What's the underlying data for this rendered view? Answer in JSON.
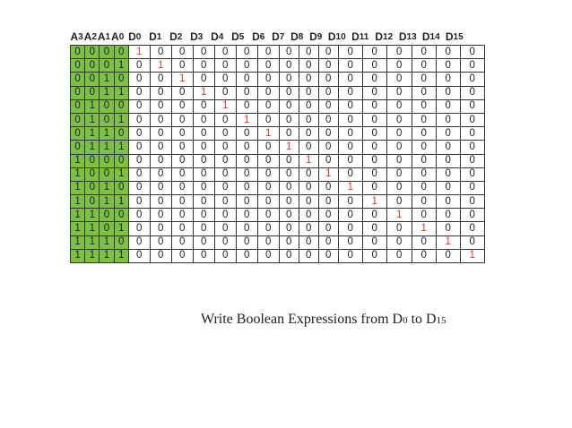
{
  "header": {
    "inputs": [
      {
        "base": "A",
        "sub": "3"
      },
      {
        "base": "A",
        "sub": "2"
      },
      {
        "base": "A",
        "sub": "1"
      },
      {
        "base": "A",
        "sub": "0"
      }
    ],
    "outputs": [
      {
        "base": "D",
        "sub": "0"
      },
      {
        "base": "D",
        "sub": "1"
      },
      {
        "base": "D",
        "sub": "2"
      },
      {
        "base": "D",
        "sub": "3"
      },
      {
        "base": "D",
        "sub": "4"
      },
      {
        "base": "D",
        "sub": "5"
      },
      {
        "base": "D",
        "sub": "6"
      },
      {
        "base": "D",
        "sub": "7"
      },
      {
        "base": "D",
        "sub": "8"
      },
      {
        "base": "D",
        "sub": "9"
      },
      {
        "base": "D",
        "sub": "10"
      },
      {
        "base": "D",
        "sub": "11"
      },
      {
        "base": "D",
        "sub": "12"
      },
      {
        "base": "D",
        "sub": "13"
      },
      {
        "base": "D",
        "sub": "14"
      },
      {
        "base": "D",
        "sub": "15"
      }
    ]
  },
  "rows": [
    {
      "inputs": [
        "0",
        "0",
        "0",
        "0"
      ],
      "outputs": [
        "1",
        "0",
        "0",
        "0",
        "0",
        "0",
        "0",
        "0",
        "0",
        "0",
        "0",
        "0",
        "0",
        "0",
        "0",
        "0"
      ]
    },
    {
      "inputs": [
        "0",
        "0",
        "0",
        "1"
      ],
      "outputs": [
        "0",
        "1",
        "0",
        "0",
        "0",
        "0",
        "0",
        "0",
        "0",
        "0",
        "0",
        "0",
        "0",
        "0",
        "0",
        "0"
      ]
    },
    {
      "inputs": [
        "0",
        "0",
        "1",
        "0"
      ],
      "outputs": [
        "0",
        "0",
        "1",
        "0",
        "0",
        "0",
        "0",
        "0",
        "0",
        "0",
        "0",
        "0",
        "0",
        "0",
        "0",
        "0"
      ]
    },
    {
      "inputs": [
        "0",
        "0",
        "1",
        "1"
      ],
      "outputs": [
        "0",
        "0",
        "0",
        "1",
        "0",
        "0",
        "0",
        "0",
        "0",
        "0",
        "0",
        "0",
        "0",
        "0",
        "0",
        "0"
      ]
    },
    {
      "inputs": [
        "0",
        "1",
        "0",
        "0"
      ],
      "outputs": [
        "0",
        "0",
        "0",
        "0",
        "1",
        "0",
        "0",
        "0",
        "0",
        "0",
        "0",
        "0",
        "0",
        "0",
        "0",
        "0"
      ]
    },
    {
      "inputs": [
        "0",
        "1",
        "0",
        "1"
      ],
      "outputs": [
        "0",
        "0",
        "0",
        "0",
        "0",
        "1",
        "0",
        "0",
        "0",
        "0",
        "0",
        "0",
        "0",
        "0",
        "0",
        "0"
      ]
    },
    {
      "inputs": [
        "0",
        "1",
        "1",
        "0"
      ],
      "outputs": [
        "0",
        "0",
        "0",
        "0",
        "0",
        "0",
        "1",
        "0",
        "0",
        "0",
        "0",
        "0",
        "0",
        "0",
        "0",
        "0"
      ]
    },
    {
      "inputs": [
        "0",
        "1",
        "1",
        "1"
      ],
      "outputs": [
        "0",
        "0",
        "0",
        "0",
        "0",
        "0",
        "0",
        "1",
        "0",
        "0",
        "0",
        "0",
        "0",
        "0",
        "0",
        "0"
      ]
    },
    {
      "inputs": [
        "1",
        "0",
        "0",
        "0"
      ],
      "outputs": [
        "0",
        "0",
        "0",
        "0",
        "0",
        "0",
        "0",
        "0",
        "1",
        "0",
        "0",
        "0",
        "0",
        "0",
        "0",
        "0"
      ]
    },
    {
      "inputs": [
        "1",
        "0",
        "0",
        "1"
      ],
      "outputs": [
        "0",
        "0",
        "0",
        "0",
        "0",
        "0",
        "0",
        "0",
        "0",
        "1",
        "0",
        "0",
        "0",
        "0",
        "0",
        "0"
      ]
    },
    {
      "inputs": [
        "1",
        "0",
        "1",
        "0"
      ],
      "outputs": [
        "0",
        "0",
        "0",
        "0",
        "0",
        "0",
        "0",
        "0",
        "0",
        "0",
        "1",
        "0",
        "0",
        "0",
        "0",
        "0"
      ]
    },
    {
      "inputs": [
        "1",
        "0",
        "1",
        "1"
      ],
      "outputs": [
        "0",
        "0",
        "0",
        "0",
        "0",
        "0",
        "0",
        "0",
        "0",
        "0",
        "0",
        "1",
        "0",
        "0",
        "0",
        "0"
      ]
    },
    {
      "inputs": [
        "1",
        "1",
        "0",
        "0"
      ],
      "outputs": [
        "0",
        "0",
        "0",
        "0",
        "0",
        "0",
        "0",
        "0",
        "0",
        "0",
        "0",
        "0",
        "1",
        "0",
        "0",
        "0"
      ]
    },
    {
      "inputs": [
        "1",
        "1",
        "0",
        "1"
      ],
      "outputs": [
        "0",
        "0",
        "0",
        "0",
        "0",
        "0",
        "0",
        "0",
        "0",
        "0",
        "0",
        "0",
        "0",
        "1",
        "0",
        "0"
      ]
    },
    {
      "inputs": [
        "1",
        "1",
        "1",
        "0"
      ],
      "outputs": [
        "0",
        "0",
        "0",
        "0",
        "0",
        "0",
        "0",
        "0",
        "0",
        "0",
        "0",
        "0",
        "0",
        "0",
        "1",
        "0"
      ]
    },
    {
      "inputs": [
        "1",
        "1",
        "1",
        "1"
      ],
      "outputs": [
        "0",
        "0",
        "0",
        "0",
        "0",
        "0",
        "0",
        "0",
        "0",
        "0",
        "0",
        "0",
        "0",
        "0",
        "0",
        "1"
      ]
    }
  ],
  "caption": {
    "before": "Write Boolean Expressions from D",
    "sub1": "0",
    "middle": " to D",
    "sub2": "15"
  },
  "colors": {
    "input_fill": "#7dc142",
    "active_output": "#e8312a",
    "text": "#222222",
    "border": "#333333"
  }
}
